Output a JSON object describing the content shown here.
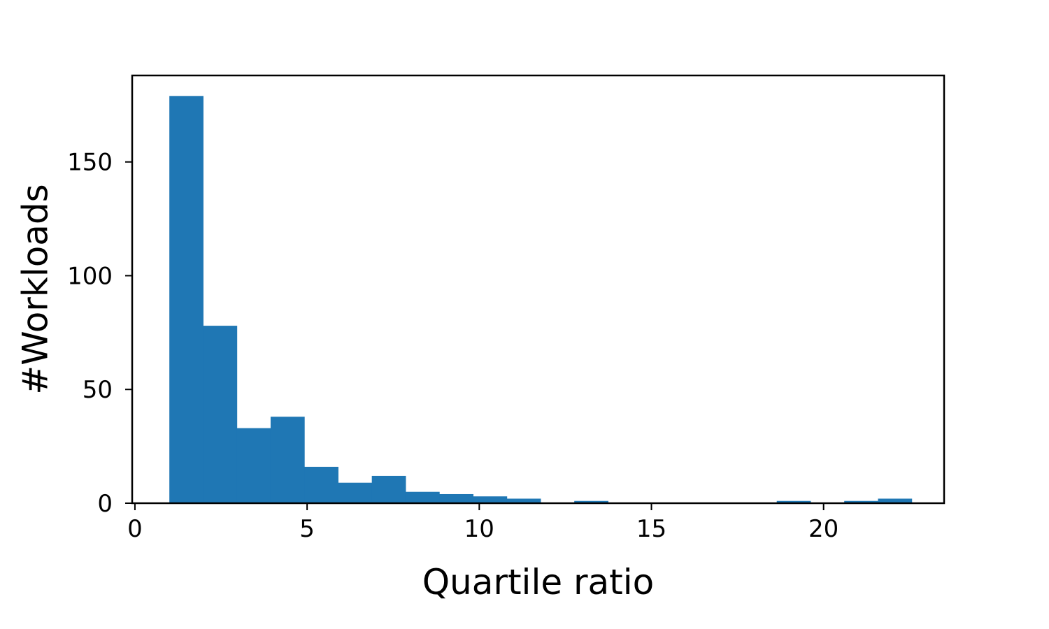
{
  "chart_data": {
    "type": "bar",
    "title": "",
    "xlabel": "Quartile ratio",
    "ylabel": "#Workloads",
    "xlim": [
      -0.08,
      23.5
    ],
    "ylim": [
      0,
      188
    ],
    "x_ticks": [
      0,
      5,
      10,
      15,
      20
    ],
    "y_ticks": [
      0,
      50,
      100,
      150
    ],
    "bar_color": "#1f77b4",
    "bins": [
      {
        "x0": 1.0,
        "x1": 1.98,
        "count": 179
      },
      {
        "x0": 1.98,
        "x1": 2.96,
        "count": 78
      },
      {
        "x0": 2.96,
        "x1": 3.94,
        "count": 33
      },
      {
        "x0": 3.94,
        "x1": 4.92,
        "count": 38
      },
      {
        "x0": 4.92,
        "x1": 5.9,
        "count": 16
      },
      {
        "x0": 5.9,
        "x1": 6.88,
        "count": 9
      },
      {
        "x0": 6.88,
        "x1": 7.86,
        "count": 12
      },
      {
        "x0": 7.86,
        "x1": 8.84,
        "count": 5
      },
      {
        "x0": 8.84,
        "x1": 9.82,
        "count": 4
      },
      {
        "x0": 9.82,
        "x1": 10.8,
        "count": 3
      },
      {
        "x0": 10.8,
        "x1": 11.78,
        "count": 2
      },
      {
        "x0": 11.78,
        "x1": 12.76,
        "count": 0
      },
      {
        "x0": 12.76,
        "x1": 13.74,
        "count": 1
      },
      {
        "x0": 13.74,
        "x1": 14.72,
        "count": 0
      },
      {
        "x0": 14.72,
        "x1": 15.7,
        "count": 0
      },
      {
        "x0": 15.7,
        "x1": 16.68,
        "count": 0
      },
      {
        "x0": 16.68,
        "x1": 17.66,
        "count": 0
      },
      {
        "x0": 17.66,
        "x1": 18.64,
        "count": 0
      },
      {
        "x0": 18.64,
        "x1": 19.62,
        "count": 1
      },
      {
        "x0": 19.62,
        "x1": 20.6,
        "count": 0
      },
      {
        "x0": 20.6,
        "x1": 21.58,
        "count": 1
      },
      {
        "x0": 21.58,
        "x1": 22.56,
        "count": 2
      }
    ]
  }
}
